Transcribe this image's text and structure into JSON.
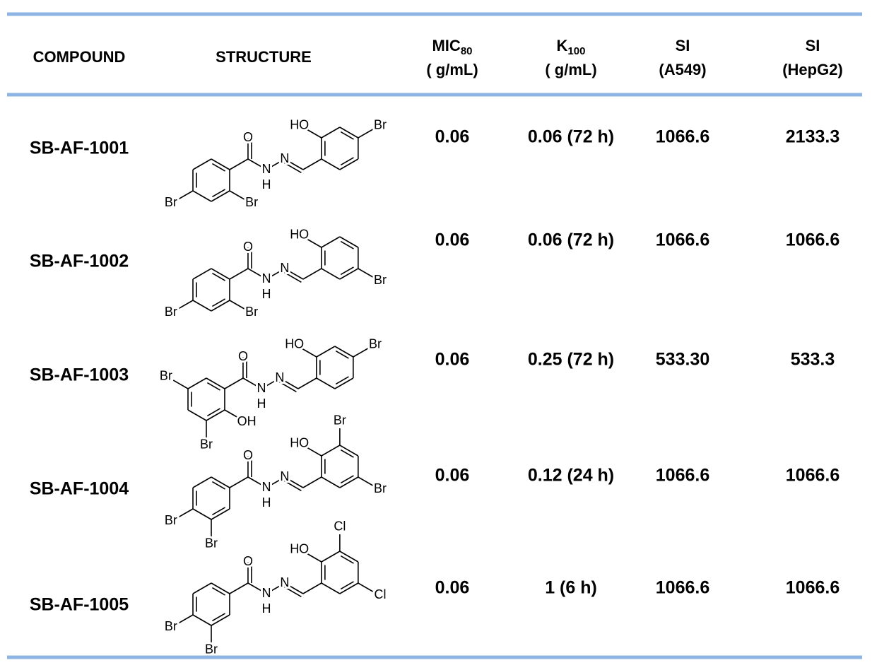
{
  "table": {
    "headers": [
      {
        "main": "COMPOUND"
      },
      {
        "main": "STRUCTURE"
      },
      {
        "main": "MIC",
        "sub": "80",
        "unit": "( g/mL)"
      },
      {
        "main": "K",
        "sub": "100",
        "unit": "( g/mL)"
      },
      {
        "main": "SI",
        "unit": "(A549)"
      },
      {
        "main": "SI",
        "unit": "(HepG2)"
      }
    ],
    "rows": [
      {
        "compound": "SB-AF-1001",
        "structure": [
          "O",
          "N",
          "N",
          "H",
          "HO",
          "Br",
          "Br",
          "Br"
        ],
        "mic": "0.06",
        "k100": "0.06 (72 h)",
        "si_a549": "1066.6",
        "si_hepg2": "2133.3"
      },
      {
        "compound": "SB-AF-1002",
        "structure": [
          "O",
          "N",
          "N",
          "H",
          "HO",
          "Br",
          "Br",
          "Br"
        ],
        "mic": "0.06",
        "k100": "0.06 (72 h)",
        "si_a549": "1066.6",
        "si_hepg2": "1066.6"
      },
      {
        "compound": "SB-AF-1003",
        "structure": [
          "O",
          "N",
          "N",
          "H",
          "HO",
          "Br",
          "Br",
          "OH",
          "Br"
        ],
        "mic": "0.06",
        "k100": "0.25 (72 h)",
        "si_a549": "533.30",
        "si_hepg2": "533.3"
      },
      {
        "compound": "SB-AF-1004",
        "structure": [
          "O",
          "N",
          "N",
          "H",
          "HO",
          "Br",
          "Br",
          "Br",
          "Br"
        ],
        "mic": "0.06",
        "k100": "0.12 (24 h)",
        "si_a549": "1066.6",
        "si_hepg2": "1066.6"
      },
      {
        "compound": "SB-AF-1005",
        "structure": [
          "O",
          "N",
          "N",
          "H",
          "HO",
          "Cl",
          "Cl",
          "Br",
          "Br"
        ],
        "mic": "0.06",
        "k100": "1 (6 h)",
        "si_a549": "1066.6",
        "si_hepg2": "1066.6"
      }
    ]
  }
}
